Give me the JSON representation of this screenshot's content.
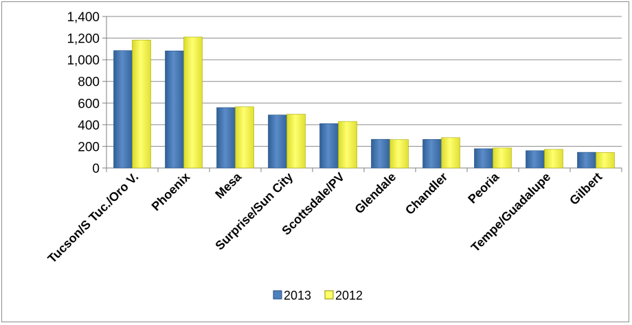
{
  "chart_data": {
    "type": "bar",
    "title": "",
    "xlabel": "",
    "ylabel": "",
    "categories": [
      "Tucson/S Tuc./Oro V.",
      "Phoenix",
      "Mesa",
      "Surprise/Sun City",
      "Scottsdale/PV",
      "Glendale",
      "Chandler",
      "Peoria",
      "Tempe/Guadalupe",
      "Gilbert"
    ],
    "series": [
      {
        "name": "2013",
        "color": "#4f81bd",
        "values": [
          1085,
          1082,
          558,
          490,
          410,
          265,
          264,
          178,
          160,
          145
        ]
      },
      {
        "name": "2012",
        "color": "#ffff66",
        "values": [
          1182,
          1210,
          565,
          497,
          430,
          262,
          280,
          185,
          172,
          143
        ]
      }
    ],
    "ylim": [
      0,
      1400
    ],
    "yticks": [
      0,
      200,
      400,
      600,
      800,
      1000,
      1200,
      1400
    ],
    "ytick_labels": [
      "0",
      "200",
      "400",
      "600",
      "800",
      "1,000",
      "1,200",
      "1,400"
    ],
    "grid": true,
    "legend": "bottom"
  }
}
